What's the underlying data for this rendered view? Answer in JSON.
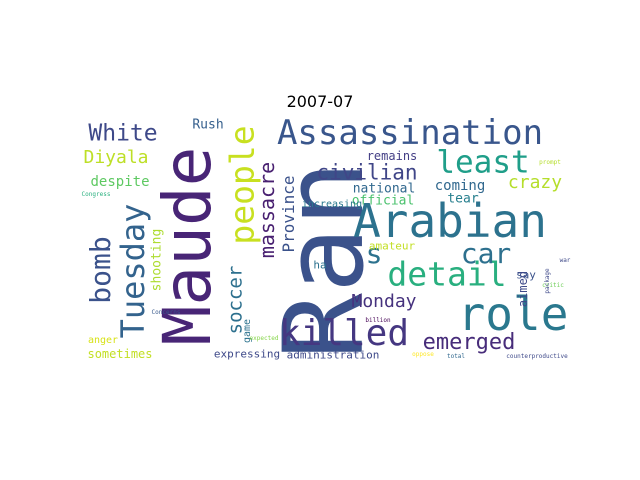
{
  "title": "2007-07",
  "words": [
    {
      "text": "Ran",
      "color": "#3b528b"
    },
    {
      "text": "Maude",
      "color": "#482576"
    },
    {
      "text": "Arabian",
      "color": "#2c728e"
    },
    {
      "text": "role",
      "color": "#2a788e"
    },
    {
      "text": "Assassination",
      "color": "#39568c"
    },
    {
      "text": "killed",
      "color": "#453781"
    },
    {
      "text": "people",
      "color": "#c8e020"
    },
    {
      "text": "detail",
      "color": "#29af7f"
    },
    {
      "text": "Tuesday",
      "color": "#33638d"
    },
    {
      "text": "least",
      "color": "#1f9e89"
    },
    {
      "text": "bomb",
      "color": "#3b528b"
    },
    {
      "text": "car",
      "color": "#2d708e"
    },
    {
      "text": "s",
      "color": "#2c728e"
    },
    {
      "text": "emerged",
      "color": "#472c7a"
    },
    {
      "text": "civilian",
      "color": "#404688"
    },
    {
      "text": "White",
      "color": "#3e4989"
    },
    {
      "text": "Diyala",
      "color": "#bddf26"
    },
    {
      "text": "massacre",
      "color": "#481f70"
    },
    {
      "text": "soccer",
      "color": "#2d708e"
    },
    {
      "text": "Monday",
      "color": "#46327e"
    },
    {
      "text": "crazy",
      "color": "#b5de2b"
    },
    {
      "text": "Province",
      "color": "#3b528b"
    },
    {
      "text": "despite",
      "color": "#5ec962"
    },
    {
      "text": "shooting",
      "color": "#addc30"
    },
    {
      "text": "coming",
      "color": "#31688e"
    },
    {
      "text": "national",
      "color": "#31688e"
    },
    {
      "text": "remains",
      "color": "#433e85"
    },
    {
      "text": "Rush",
      "color": "#355f8d"
    },
    {
      "text": "official",
      "color": "#4ac16d"
    },
    {
      "text": "tear",
      "color": "#277f8e"
    },
    {
      "text": "increasing",
      "color": "#2a788e"
    },
    {
      "text": "amateur",
      "color": "#c2df23"
    },
    {
      "text": "aimed",
      "color": "#3e4989"
    },
    {
      "text": "sometimes",
      "color": "#c2df23"
    },
    {
      "text": "administration",
      "color": "#3e4989"
    },
    {
      "text": "expressing",
      "color": "#3e4989"
    },
    {
      "text": "game",
      "color": "#2c728e"
    },
    {
      "text": "say",
      "color": "#3b528b"
    },
    {
      "text": "anger",
      "color": "#d8e219"
    },
    {
      "text": "ha",
      "color": "#2c728e"
    },
    {
      "text": "Concerns",
      "color": "#38598c"
    },
    {
      "text": "Congress",
      "color": "#2ab07f"
    },
    {
      "text": "billion",
      "color": "#440154"
    },
    {
      "text": "expected",
      "color": "#86d549"
    },
    {
      "text": "oppose",
      "color": "#fde725"
    },
    {
      "text": "total",
      "color": "#31688e"
    },
    {
      "text": "counterproductive",
      "color": "#3e4989"
    },
    {
      "text": "prompt",
      "color": "#b5de2b"
    },
    {
      "text": "critic",
      "color": "#6ece58"
    },
    {
      "text": "package",
      "color": "#3e4989"
    },
    {
      "text": "war",
      "color": "#3e4989"
    }
  ]
}
